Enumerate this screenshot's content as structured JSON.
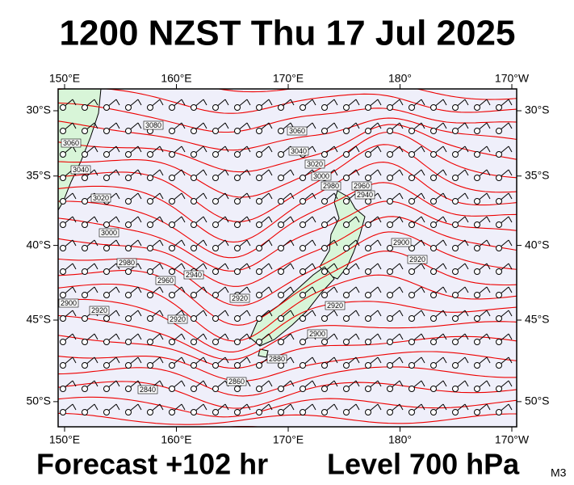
{
  "title": "1200 NZST Thu 17 Jul 2025",
  "footer": {
    "forecast": "Forecast +102 hr",
    "level": "Level 700 hPa",
    "code": "M3"
  },
  "map": {
    "lon_ticks": [
      {
        "value": 150,
        "label": "150°E"
      },
      {
        "value": 160,
        "label": "160°E"
      },
      {
        "value": 170,
        "label": "170°E"
      },
      {
        "value": 180,
        "label": "180°"
      },
      {
        "value": 190,
        "label": "170°W"
      }
    ],
    "lat_ticks": [
      {
        "value": 30,
        "label": "30°S"
      },
      {
        "value": 35,
        "label": "35°S"
      },
      {
        "value": 40,
        "label": "40°S"
      },
      {
        "value": 45,
        "label": "45°S"
      },
      {
        "value": 50,
        "label": "50°S"
      }
    ],
    "contour_labels": [
      "3080",
      "3060",
      "3060",
      "3040",
      "3040",
      "3020",
      "3000",
      "2980",
      "2960",
      "2940",
      "3020",
      "3000",
      "2980",
      "2960",
      "2940",
      "2920",
      "2900",
      "2920",
      "2920",
      "2920",
      "2900",
      "2920",
      "2900",
      "2880",
      "2860",
      "2840"
    ]
  }
}
